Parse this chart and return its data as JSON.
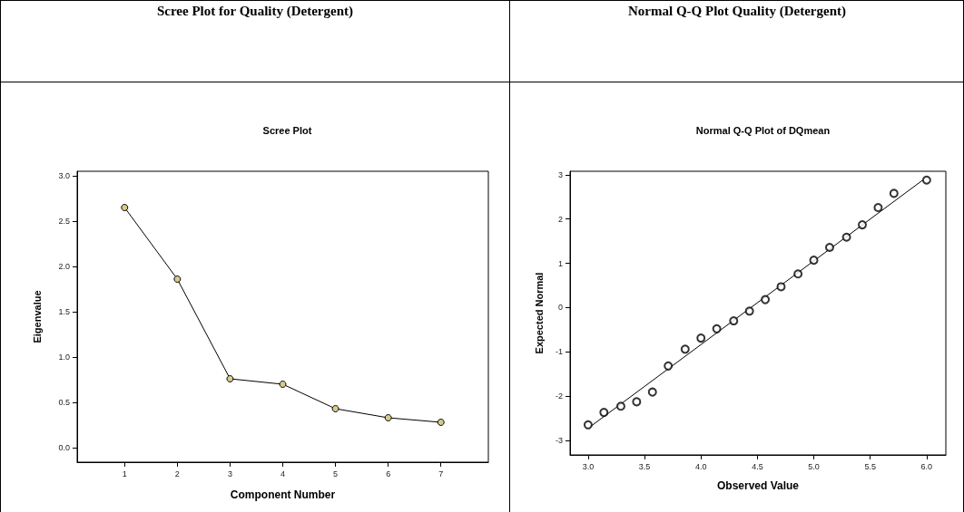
{
  "chart_data": [
    {
      "type": "line",
      "title": "Scree Plot for Quality (Detergent)",
      "subtitle": "Scree Plot",
      "xlabel": "Component Number",
      "ylabel": "Eigenvalue",
      "x": [
        1,
        2,
        3,
        4,
        5,
        6,
        7
      ],
      "series": [
        {
          "color": "#000000",
          "colors": [
            "#d6cb8f",
            "#d6cb8f",
            "#d6cb8f",
            "#d6cb8f",
            "#d6cb8f",
            "#d6cb8f",
            "#d6cb8f"
          ],
          "marker": "circle",
          "values": [
            2.65,
            1.86,
            0.76,
            0.7,
            0.43,
            0.33,
            0.28
          ]
        }
      ],
      "xlim": [
        0.1,
        7.9
      ],
      "xticks": [
        1,
        2,
        3,
        4,
        5,
        6,
        7
      ],
      "ylim": [
        -0.16,
        3.05
      ],
      "yticks": [
        {
          "value": 0,
          "label": "0.0"
        },
        {
          "value": 0.5,
          "label": "0.5"
        },
        {
          "value": 1,
          "label": "1.0"
        },
        {
          "value": 1.5,
          "label": "1.5"
        },
        {
          "value": 2,
          "label": "2.0"
        },
        {
          "value": 2.5,
          "label": "2.5"
        },
        {
          "value": 3,
          "label": "3.0"
        }
      ],
      "grid": false
    },
    {
      "type": "scatter",
      "title": "Normal Q-Q Plot Quality (Detergent)",
      "subtitle": "Normal Q-Q Plot of DQmean",
      "xlabel": "Observed Value",
      "ylabel": "Expected Normal",
      "series": [
        {
          "color": "#000000",
          "marker": "circle",
          "x": [
            3.0,
            3.14,
            3.29,
            3.43,
            3.57,
            3.71,
            3.86,
            4.0,
            4.14,
            4.29,
            4.43,
            4.57,
            4.71,
            4.86,
            5.0,
            5.14,
            5.29,
            5.43,
            5.57,
            5.71,
            6.0
          ],
          "values": [
            -2.65,
            -2.37,
            -2.23,
            -2.13,
            -1.91,
            -1.32,
            -0.94,
            -0.69,
            -0.48,
            -0.3,
            -0.08,
            0.18,
            0.47,
            0.76,
            1.07,
            1.36,
            1.59,
            1.87,
            2.26,
            2.58,
            2.88
          ]
        },
        {
          "type": "line",
          "color": "#000000",
          "marker": "none",
          "x": [
            3.02,
            5.96
          ],
          "values": [
            -2.69,
            2.87
          ]
        }
      ],
      "xlim": [
        2.84,
        6.17
      ],
      "xticks": [
        {
          "value": 3,
          "label": "3.0"
        },
        {
          "value": 3.5,
          "label": "3.5"
        },
        {
          "value": 4,
          "label": "4.0"
        },
        {
          "value": 4.5,
          "label": "4.5"
        },
        {
          "value": 5,
          "label": "5.0"
        },
        {
          "value": 5.5,
          "label": "5.5"
        },
        {
          "value": 6,
          "label": "6.0"
        }
      ],
      "ylim": [
        -3.33,
        3.08
      ],
      "yticks": [
        -3,
        -2,
        -1,
        0,
        1,
        2,
        3
      ],
      "grid": false
    }
  ]
}
